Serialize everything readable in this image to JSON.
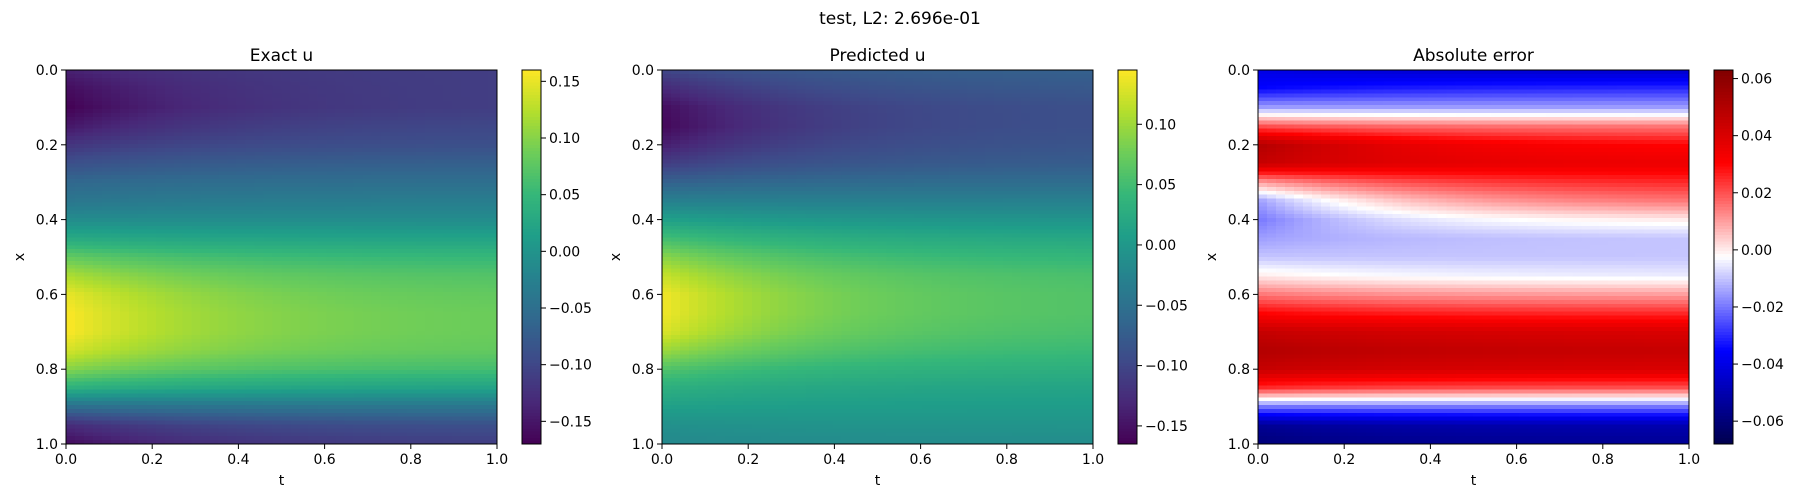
{
  "figure": {
    "suptitle": "test, L2: 2.696e-01"
  },
  "chart_data": [
    {
      "type": "heatmap",
      "title": "Exact u",
      "xlabel": "t",
      "ylabel": "x",
      "xlim": [
        0,
        1
      ],
      "ylim": [
        1,
        0
      ],
      "xticks": [
        "0.0",
        "0.2",
        "0.4",
        "0.6",
        "0.8",
        "1.0"
      ],
      "yticks": [
        "0.0",
        "0.2",
        "0.4",
        "0.6",
        "0.8",
        "1.0"
      ],
      "colormap": "viridis",
      "vmin": -0.17,
      "vmax": 0.16,
      "colorbar_ticks": [
        "0.15",
        "0.10",
        "0.05",
        "0.00",
        "−0.05",
        "−0.10",
        "−0.15"
      ],
      "profile_x": [
        0.0,
        0.05,
        0.1,
        0.15,
        0.2,
        0.25,
        0.3,
        0.35,
        0.4,
        0.45,
        0.5,
        0.55,
        0.6,
        0.65,
        0.7,
        0.75,
        0.8,
        0.85,
        0.9,
        0.95,
        1.0
      ],
      "profile_t0": [
        -0.14,
        -0.16,
        -0.17,
        -0.15,
        -0.12,
        -0.09,
        -0.06,
        -0.04,
        -0.01,
        0.03,
        0.08,
        0.12,
        0.15,
        0.16,
        0.16,
        0.14,
        0.1,
        0.04,
        -0.05,
        -0.13,
        -0.16
      ],
      "profile_t1": [
        -0.11,
        -0.11,
        -0.11,
        -0.1,
        -0.09,
        -0.07,
        -0.05,
        -0.03,
        -0.01,
        0.02,
        0.05,
        0.07,
        0.08,
        0.085,
        0.085,
        0.08,
        0.06,
        0.02,
        -0.04,
        -0.09,
        -0.11
      ]
    },
    {
      "type": "heatmap",
      "title": "Predicted u",
      "xlabel": "t",
      "ylabel": "x",
      "xlim": [
        0,
        1
      ],
      "ylim": [
        1,
        0
      ],
      "xticks": [
        "0.0",
        "0.2",
        "0.4",
        "0.6",
        "0.8",
        "1.0"
      ],
      "yticks": [
        "0.0",
        "0.2",
        "0.4",
        "0.6",
        "0.8",
        "1.0"
      ],
      "colormap": "viridis",
      "vmin": -0.165,
      "vmax": 0.145,
      "colorbar_ticks": [
        "0.10",
        "0.05",
        "0.00",
        "−0.05",
        "−0.10",
        "−0.15"
      ],
      "profile_x": [
        0.0,
        0.05,
        0.1,
        0.15,
        0.2,
        0.25,
        0.3,
        0.35,
        0.4,
        0.45,
        0.5,
        0.55,
        0.6,
        0.65,
        0.7,
        0.75,
        0.8,
        0.85,
        0.9,
        0.95,
        1.0
      ],
      "profile_t0": [
        -0.1,
        -0.13,
        -0.155,
        -0.16,
        -0.14,
        -0.11,
        -0.07,
        -0.03,
        0.01,
        0.05,
        0.09,
        0.12,
        0.14,
        0.14,
        0.13,
        0.1,
        0.06,
        0.03,
        0.01,
        -0.01,
        -0.02
      ],
      "profile_t1": [
        -0.07,
        -0.08,
        -0.09,
        -0.09,
        -0.085,
        -0.075,
        -0.055,
        -0.03,
        -0.005,
        0.02,
        0.04,
        0.055,
        0.06,
        0.06,
        0.055,
        0.045,
        0.03,
        0.015,
        0.005,
        -0.005,
        -0.015
      ]
    },
    {
      "type": "heatmap",
      "title": "Absolute error",
      "xlabel": "t",
      "ylabel": "x",
      "xlim": [
        0,
        1
      ],
      "ylim": [
        1,
        0
      ],
      "xticks": [
        "0.0",
        "0.2",
        "0.4",
        "0.6",
        "0.8",
        "1.0"
      ],
      "yticks": [
        "0.0",
        "0.2",
        "0.4",
        "0.6",
        "0.8",
        "1.0"
      ],
      "colormap": "seismic",
      "vmin": -0.068,
      "vmax": 0.063,
      "colorbar_ticks": [
        "0.06",
        "0.04",
        "0.02",
        "0.00",
        "−0.02",
        "−0.04",
        "−0.06"
      ],
      "profile_x": [
        0.0,
        0.05,
        0.1,
        0.15,
        0.2,
        0.25,
        0.3,
        0.35,
        0.4,
        0.45,
        0.5,
        0.55,
        0.6,
        0.65,
        0.7,
        0.75,
        0.8,
        0.85,
        0.9,
        0.95,
        1.0
      ],
      "profile_t0": [
        -0.04,
        -0.035,
        -0.015,
        0.02,
        0.05,
        0.045,
        0.01,
        -0.015,
        -0.02,
        -0.015,
        -0.01,
        0.0,
        0.015,
        0.03,
        0.045,
        0.05,
        0.045,
        0.025,
        -0.02,
        -0.055,
        -0.06
      ],
      "profile_t1": [
        -0.045,
        -0.03,
        -0.015,
        0.015,
        0.03,
        0.035,
        0.025,
        0.015,
        0.0,
        -0.01,
        -0.01,
        -0.005,
        0.01,
        0.025,
        0.04,
        0.045,
        0.04,
        0.02,
        -0.02,
        -0.05,
        -0.055
      ]
    }
  ]
}
